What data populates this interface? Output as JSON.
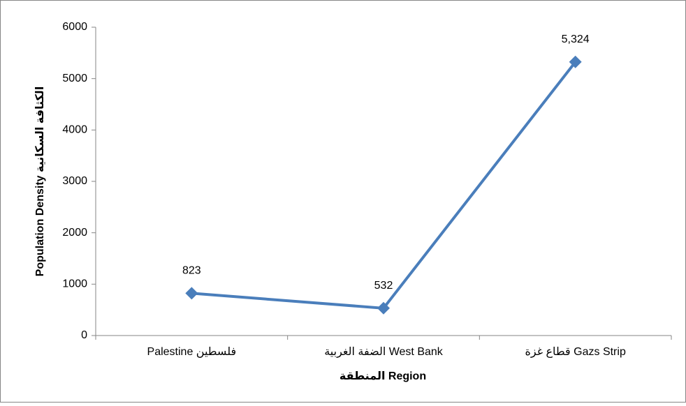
{
  "chart_data": {
    "type": "line",
    "categories": [
      "Palestine فلسطين",
      "الضفة الغربية West Bank",
      "قطاع غزة Gazs Strip"
    ],
    "series": [
      {
        "name": "Population Density",
        "color": "#4a7ebb",
        "values": [
          823,
          532,
          5324
        ],
        "value_labels": [
          "823",
          "532",
          "5,324"
        ]
      }
    ],
    "xlabel": "المنطقة Region",
    "ylabel": "Population Density الكثافة السكانية",
    "ylim": [
      0,
      6000
    ],
    "yticks": [
      0,
      1000,
      2000,
      3000,
      4000,
      5000,
      6000
    ],
    "grid": false
  }
}
